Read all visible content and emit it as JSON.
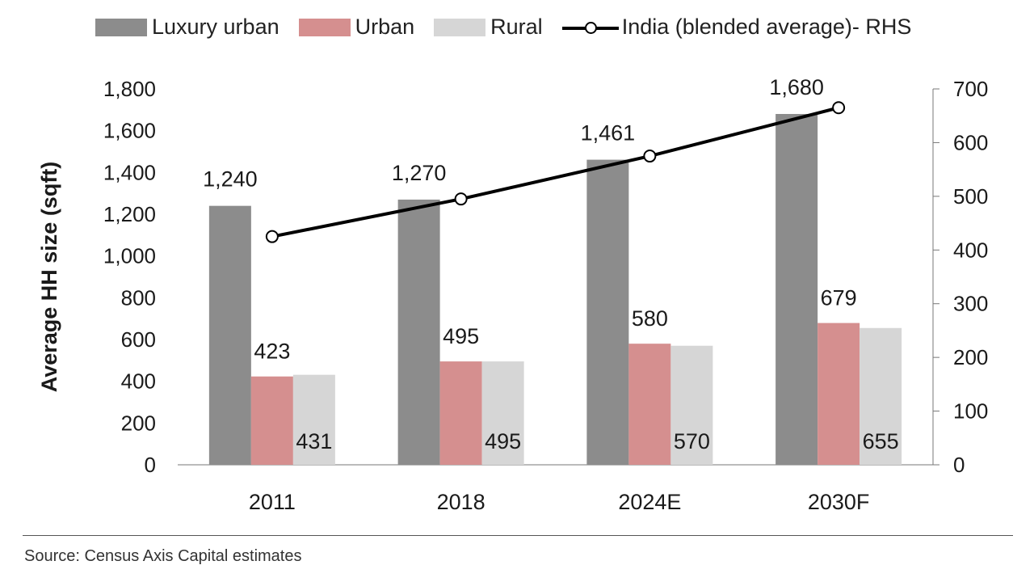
{
  "chart_data": {
    "type": "bar",
    "categories": [
      "2011",
      "2018",
      "2024E",
      "2030F"
    ],
    "series": [
      {
        "name": "Luxury urban",
        "values": [
          1240,
          1270,
          1461,
          1680
        ],
        "color": "#8c8c8c",
        "labels": [
          "1,240",
          "1,270",
          "1,461",
          "1,680"
        ]
      },
      {
        "name": "Urban",
        "values": [
          423,
          495,
          580,
          679
        ],
        "color": "#d58f8f",
        "labels": [
          "423",
          "495",
          "580",
          "679"
        ]
      },
      {
        "name": "Rural",
        "values": [
          431,
          495,
          570,
          655
        ],
        "color": "#d6d6d6",
        "labels": [
          "431",
          "495",
          "570",
          "655"
        ]
      }
    ],
    "line_series": {
      "name": "India (blended average)- RHS",
      "values": [
        425,
        495,
        575,
        665
      ],
      "axis": "right",
      "color": "#000000"
    },
    "ylabel": "Average HH size (sqft)",
    "ylim": [
      0,
      1800
    ],
    "y_ticks": [
      "0",
      "200",
      "400",
      "600",
      "800",
      "1,000",
      "1,200",
      "1,400",
      "1,600",
      "1,800"
    ],
    "y2lim": [
      0,
      700
    ],
    "y2_ticks": [
      "0",
      "100",
      "200",
      "300",
      "400",
      "500",
      "600",
      "700"
    ],
    "legend_position": "top",
    "grid": false
  },
  "source": "Source: Census Axis Capital estimates"
}
